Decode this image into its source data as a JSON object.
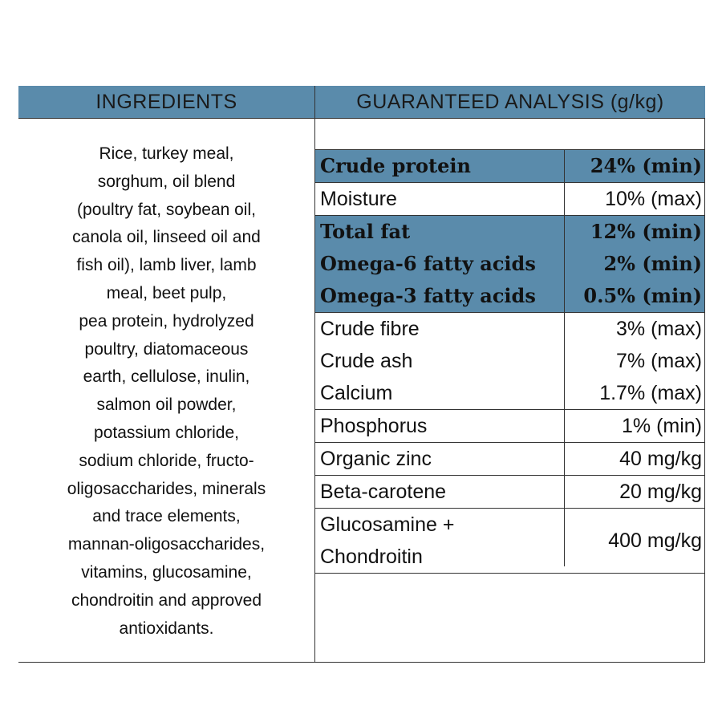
{
  "headers": {
    "ingredients": "INGREDIENTS",
    "analysis": "GUARANTEED ANALYSIS (g/kg)"
  },
  "ingredients_lines": [
    "Rice, turkey meal,",
    "sorghum, oil blend",
    "(poultry fat, soybean oil,",
    "canola oil, linseed oil and",
    "fish oil), lamb liver, lamb",
    "meal, beet pulp,",
    "pea protein, hydrolyzed",
    "poultry, diatomaceous",
    "earth, cellulose, inulin,",
    "salmon oil powder,",
    "potassium chloride,",
    "sodium chloride, fructo-",
    "oligosaccharides, minerals",
    "and trace elements,",
    "mannan-oligosaccharides,",
    "vitamins, glucosamine,",
    "chondroitin and approved",
    "antioxidants."
  ],
  "analysis": [
    {
      "name": "Crude protein",
      "value": "24% (min)",
      "highlight": true
    },
    {
      "name": "Moisture",
      "value": "10% (max)",
      "highlight": false
    },
    {
      "name": "Total fat",
      "value": "12% (min)",
      "highlight": true
    },
    {
      "name": "Omega-6 fatty acids",
      "value": "2% (min)",
      "highlight": true
    },
    {
      "name": "Omega-3 fatty acids",
      "value": "0.5% (min)",
      "highlight": true
    },
    {
      "name": "Crude fibre",
      "value": "3% (max)",
      "highlight": false
    },
    {
      "name": "Crude ash",
      "value": "7% (max)",
      "highlight": false
    },
    {
      "name": "Calcium",
      "value": "1.7% (max)",
      "highlight": false
    },
    {
      "name": "Phosphorus",
      "value": "1% (min)",
      "highlight": false
    },
    {
      "name": "Organic zinc",
      "value": "40 mg/kg",
      "highlight": false
    },
    {
      "name": "Beta-carotene",
      "value": "20 mg/kg",
      "highlight": false
    },
    {
      "name": "Glucosamine + Chondroitin",
      "value": "400 mg/kg",
      "highlight": false
    }
  ],
  "colors": {
    "header_bg": "#5a8bab",
    "highlight_bg": "#5a8bab",
    "border": "#333333"
  }
}
